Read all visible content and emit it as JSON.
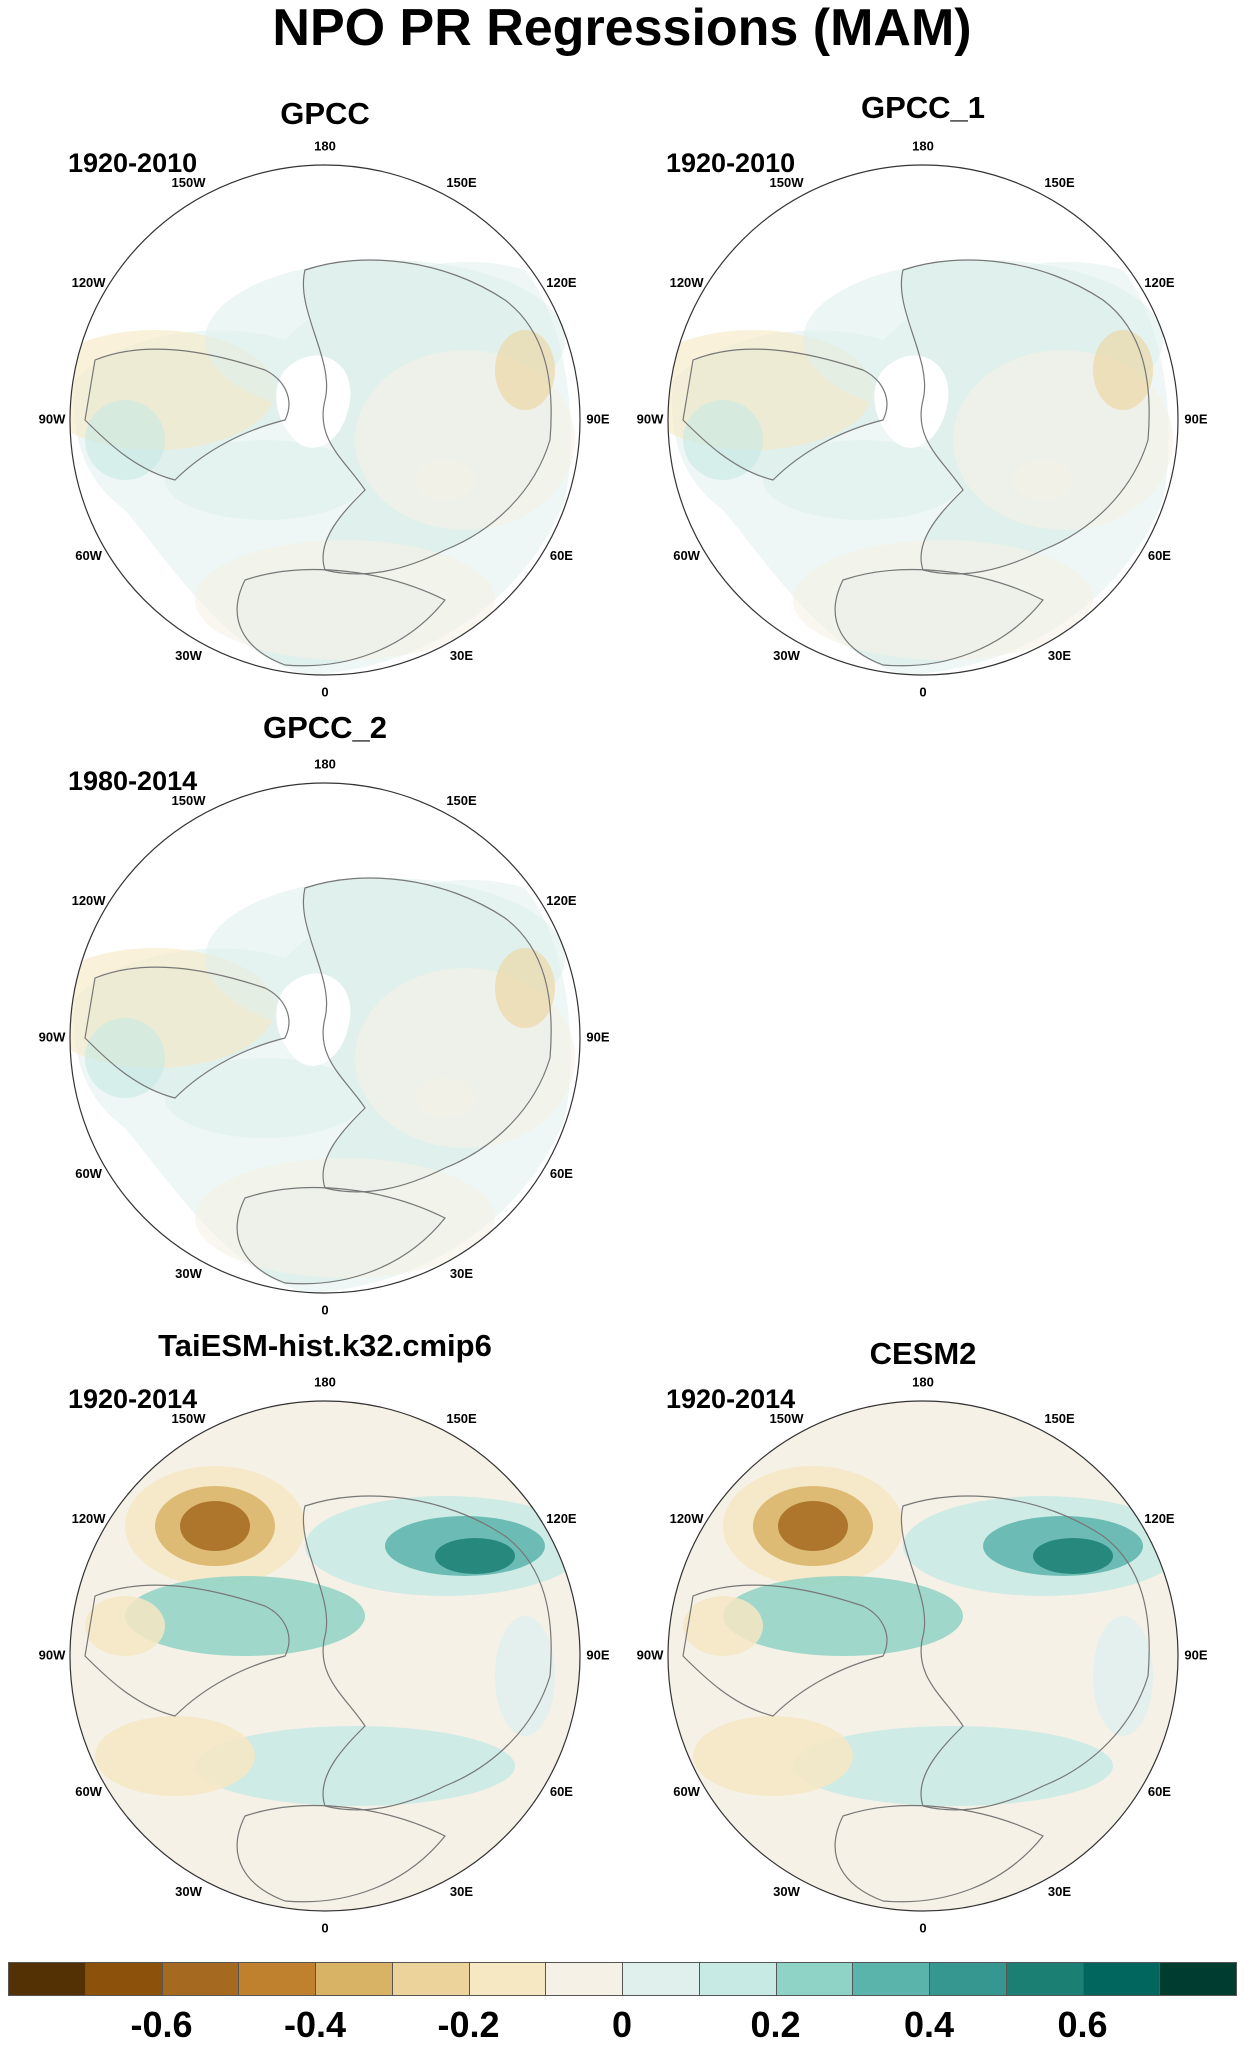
{
  "title": "NPO PR Regressions (MAM)",
  "panels": [
    {
      "name": "GPCC",
      "period": "1920-2010"
    },
    {
      "name": "GPCC_1",
      "period": "1920-2010"
    },
    {
      "name": "GPCC_2",
      "period": "1980-2014"
    },
    {
      "name": "TaiESM-hist.k32.cmip6",
      "period": "1920-2014"
    },
    {
      "name": "CESM2",
      "period": "1920-2014"
    }
  ],
  "lon_labels": [
    "180",
    "150E",
    "120E",
    "90E",
    "60E",
    "30E",
    "0",
    "30W",
    "60W",
    "90W",
    "120W",
    "150W"
  ],
  "colorbar": {
    "colors": [
      "#543005",
      "#8c510a",
      "#a56a20",
      "#bf812d",
      "#d8b365",
      "#ecd39b",
      "#f6e8c3",
      "#f5f1e6",
      "#e0f0ed",
      "#c7eae5",
      "#8fd3c6",
      "#5ab4ac",
      "#35978f",
      "#1b7f74",
      "#01665e",
      "#003c30"
    ],
    "labels": [
      "-0.6",
      "-0.4",
      "-0.2",
      "0",
      "0.2",
      "0.4",
      "0.6"
    ]
  }
}
